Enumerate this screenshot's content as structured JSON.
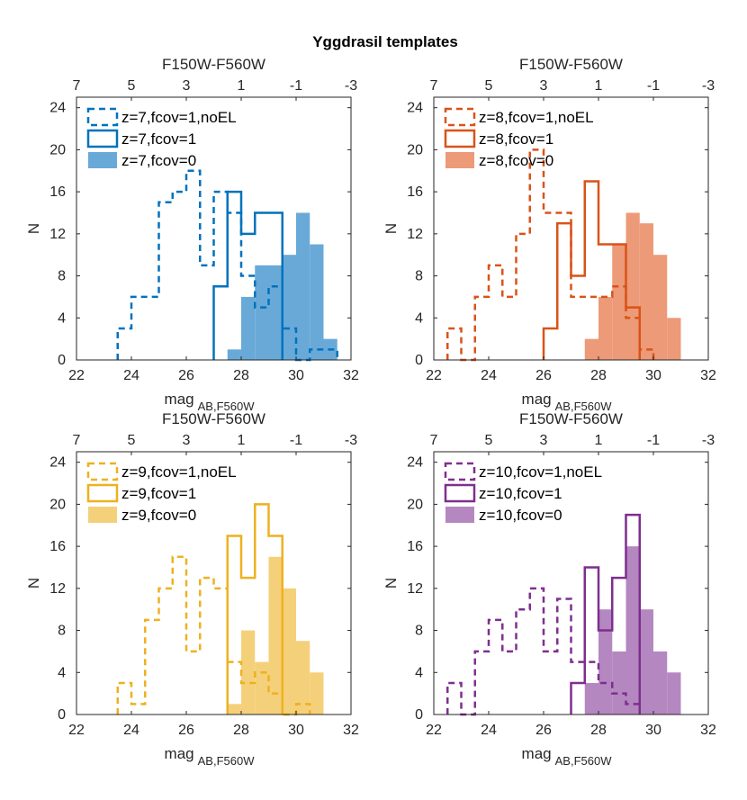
{
  "chart_data": {
    "title": "Yggdrasil templates",
    "type": "histogram",
    "panels": [
      {
        "name": "z7",
        "color": "#0072BD",
        "fill_color": "#69A9D8",
        "xlabel": "mag",
        "xlabel_sub": "AB,F560W",
        "ylabel": "N",
        "top_xlabel": "F150W-F560W",
        "xlim": [
          22,
          32
        ],
        "ylim": [
          0,
          25
        ],
        "xticks": [
          "22",
          "24",
          "26",
          "28",
          "30",
          "32"
        ],
        "yticks": [
          "0",
          "4",
          "8",
          "12",
          "16",
          "20",
          "24"
        ],
        "top_ticks": [
          "7",
          "5",
          "3",
          "1",
          "-1",
          "-3"
        ],
        "legend": [
          "z=7,fcov=1,noEL",
          "z=7,fcov=1",
          "z=7,fcov=0"
        ],
        "bin_edges": [
          22,
          22.5,
          23,
          23.5,
          24,
          24.5,
          25,
          25.5,
          26,
          26.5,
          27,
          27.5,
          28,
          28.5,
          29,
          29.5,
          30,
          30.5,
          31,
          31.5
        ],
        "series": [
          {
            "name": "z=7,fcov=1,noEL",
            "style": "dashed",
            "values": [
              0,
              0,
              0,
              3,
              6,
              6,
              15,
              16,
              18,
              9,
              16,
              14,
              8,
              5,
              7,
              3,
              0,
              1,
              1
            ]
          },
          {
            "name": "z=7,fcov=1",
            "style": "outline",
            "values": [
              0,
              0,
              0,
              0,
              0,
              0,
              0,
              0,
              0,
              0,
              7,
              16,
              12,
              14,
              14,
              0,
              0,
              0,
              0
            ]
          },
          {
            "name": "z=7,fcov=0",
            "style": "filled",
            "values": [
              0,
              0,
              0,
              0,
              0,
              0,
              0,
              0,
              0,
              0,
              0,
              1,
              6,
              9,
              9,
              10,
              14,
              11,
              2
            ]
          }
        ]
      },
      {
        "name": "z8",
        "color": "#D95319",
        "fill_color": "#EC9A78",
        "xlabel": "mag",
        "xlabel_sub": "AB,F560W",
        "ylabel": "N",
        "top_xlabel": "F150W-F560W",
        "xlim": [
          22,
          32
        ],
        "ylim": [
          0,
          25
        ],
        "xticks": [
          "22",
          "24",
          "26",
          "28",
          "30",
          "32"
        ],
        "yticks": [
          "0",
          "4",
          "8",
          "12",
          "16",
          "20",
          "24"
        ],
        "top_ticks": [
          "7",
          "5",
          "3",
          "1",
          "-1",
          "-3"
        ],
        "legend": [
          "z=8,fcov=1,noEL",
          "z=8,fcov=1",
          "z=8,fcov=0"
        ],
        "bin_edges": [
          22,
          22.5,
          23,
          23.5,
          24,
          24.5,
          25,
          25.5,
          26,
          26.5,
          27,
          27.5,
          28,
          28.5,
          29,
          29.5,
          30,
          30.5,
          31,
          31.5
        ],
        "series": [
          {
            "name": "z=8,fcov=1,noEL",
            "style": "dashed",
            "values": [
              0,
              3,
              0,
              6,
              9,
              6,
              12,
              20,
              14,
              14,
              6,
              6,
              6,
              7,
              4,
              1,
              0,
              0,
              0
            ]
          },
          {
            "name": "z=8,fcov=1",
            "style": "outline",
            "values": [
              0,
              0,
              0,
              0,
              0,
              0,
              0,
              0,
              3,
              13,
              8,
              17,
              11,
              11,
              5,
              0,
              0,
              0,
              0
            ]
          },
          {
            "name": "z=8,fcov=0",
            "style": "filled",
            "values": [
              0,
              0,
              0,
              0,
              0,
              0,
              0,
              0,
              0,
              0,
              0,
              2,
              6,
              11,
              14,
              13,
              10,
              4,
              0
            ]
          }
        ]
      },
      {
        "name": "z9",
        "color": "#EDB120",
        "fill_color": "#F5D07A",
        "xlabel": "mag",
        "xlabel_sub": "AB,F560W",
        "ylabel": "N",
        "top_xlabel": "F150W-F560W",
        "xlim": [
          22,
          32
        ],
        "ylim": [
          0,
          25
        ],
        "xticks": [
          "22",
          "24",
          "26",
          "28",
          "30",
          "32"
        ],
        "yticks": [
          "0",
          "4",
          "8",
          "12",
          "16",
          "20",
          "24"
        ],
        "top_ticks": [
          "7",
          "5",
          "3",
          "1",
          "-1",
          "-3"
        ],
        "legend": [
          "z=9,fcov=1,noEL",
          "z=9,fcov=1",
          "z=9,fcov=0"
        ],
        "bin_edges": [
          22,
          22.5,
          23,
          23.5,
          24,
          24.5,
          25,
          25.5,
          26,
          26.5,
          27,
          27.5,
          28,
          28.5,
          29,
          29.5,
          30,
          30.5,
          31,
          31.5
        ],
        "series": [
          {
            "name": "z=9,fcov=1,noEL",
            "style": "dashed",
            "values": [
              0,
              0,
              0,
              3,
              1,
              9,
              12,
              15,
              6,
              13,
              12,
              5,
              3,
              4,
              2,
              0,
              1,
              0,
              0
            ]
          },
          {
            "name": "z=9,fcov=1",
            "style": "outline",
            "values": [
              0,
              0,
              0,
              0,
              0,
              0,
              0,
              0,
              0,
              0,
              0,
              17,
              13,
              20,
              17,
              0,
              0,
              0,
              0
            ]
          },
          {
            "name": "z=9,fcov=0",
            "style": "filled",
            "values": [
              0,
              0,
              0,
              0,
              0,
              0,
              0,
              0,
              0,
              0,
              0,
              1,
              8,
              5,
              15,
              12,
              7,
              4,
              0
            ]
          }
        ]
      },
      {
        "name": "z10",
        "color": "#7E2F8E",
        "fill_color": "#B487C0",
        "xlabel": "mag",
        "xlabel_sub": "AB,F560W",
        "ylabel": "N",
        "top_xlabel": "F150W-F560W",
        "xlim": [
          22,
          32
        ],
        "ylim": [
          0,
          25
        ],
        "xticks": [
          "22",
          "24",
          "26",
          "28",
          "30",
          "32"
        ],
        "yticks": [
          "0",
          "4",
          "8",
          "12",
          "16",
          "20",
          "24"
        ],
        "top_ticks": [
          "7",
          "5",
          "3",
          "1",
          "-1",
          "-3"
        ],
        "legend": [
          "z=10,fcov=1,noEL",
          "z=10,fcov=1",
          "z=10,fcov=0"
        ],
        "bin_edges": [
          22,
          22.5,
          23,
          23.5,
          24,
          24.5,
          25,
          25.5,
          26,
          26.5,
          27,
          27.5,
          28,
          28.5,
          29,
          29.5,
          30,
          30.5,
          31,
          31.5
        ],
        "series": [
          {
            "name": "z=10,fcov=1,noEL",
            "style": "dashed",
            "values": [
              0,
              3,
              0,
              6,
              9,
              6,
              10,
              12,
              6,
              11,
              5,
              5,
              3,
              2,
              1,
              0,
              0,
              0,
              0
            ]
          },
          {
            "name": "z=10,fcov=1",
            "style": "outline",
            "values": [
              0,
              0,
              0,
              0,
              0,
              0,
              0,
              0,
              0,
              0,
              3,
              14,
              8,
              13,
              19,
              0,
              0,
              0,
              0
            ]
          },
          {
            "name": "z=10,fcov=0",
            "style": "filled",
            "values": [
              0,
              0,
              0,
              0,
              0,
              0,
              0,
              0,
              0,
              0,
              0,
              3,
              10,
              6,
              16,
              10,
              6,
              4,
              0
            ]
          }
        ]
      }
    ]
  }
}
